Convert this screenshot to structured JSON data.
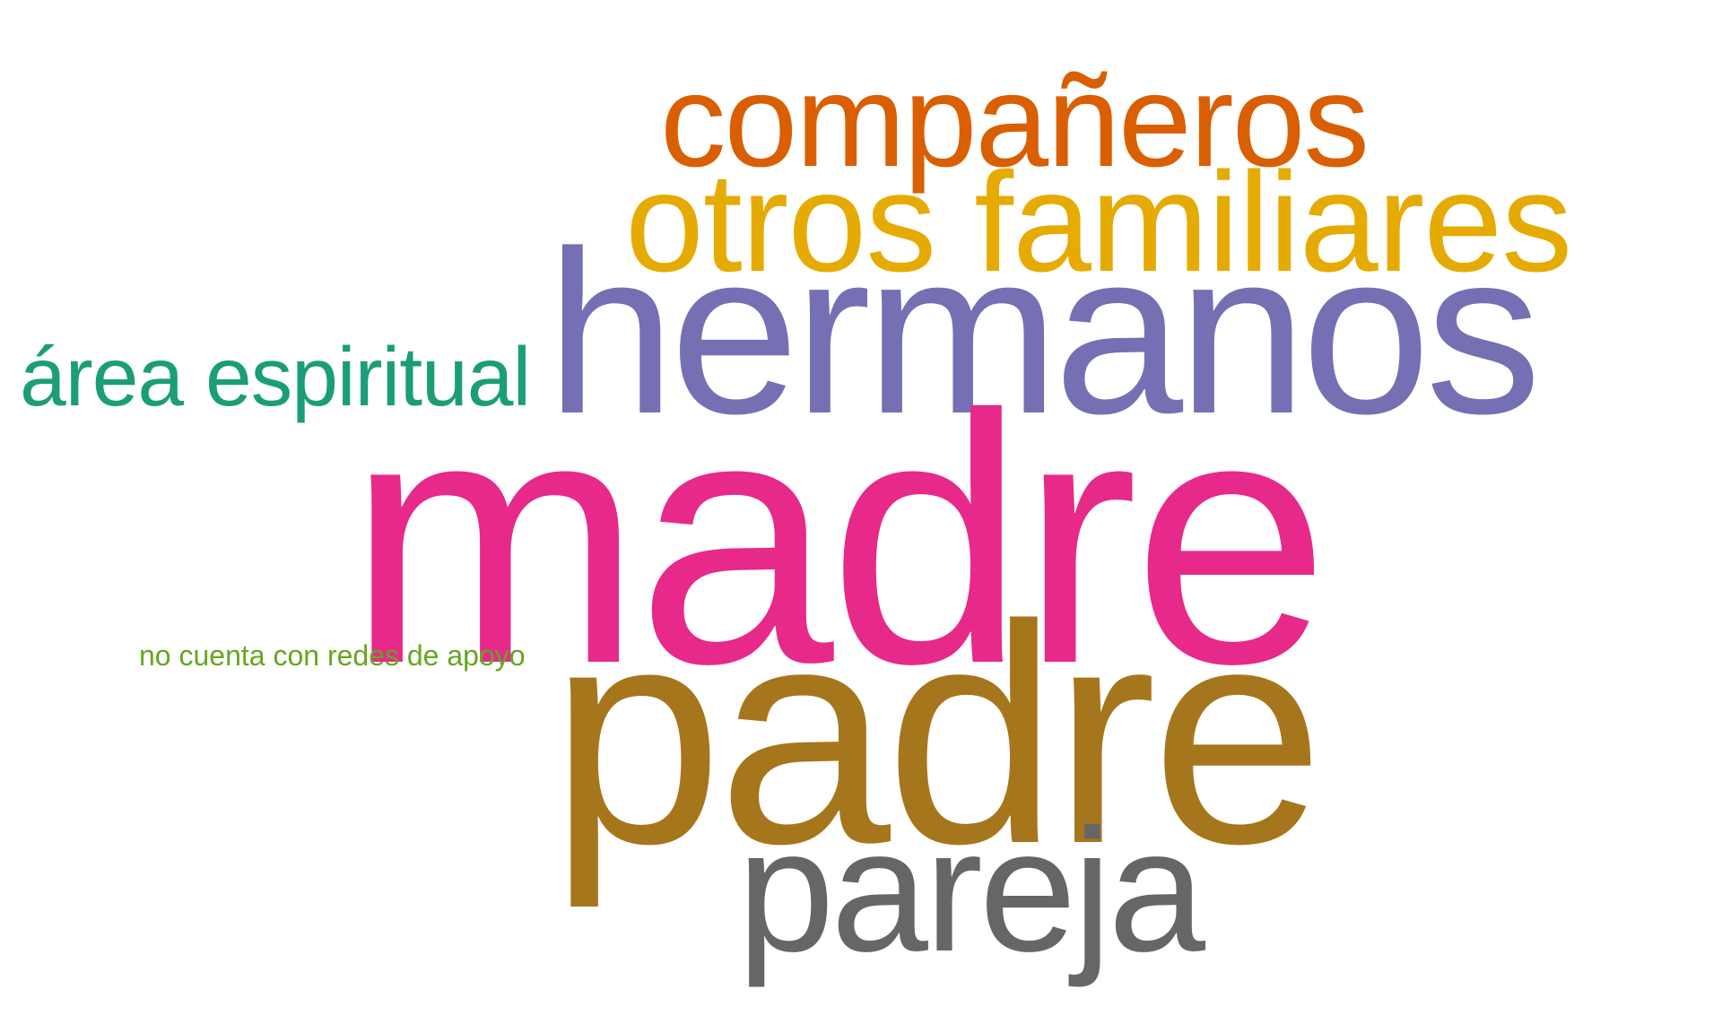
{
  "words": [
    {
      "text": "madre",
      "color": "#E7298A",
      "rank": 1
    },
    {
      "text": "padre",
      "color": "#A6761D",
      "rank": 2
    },
    {
      "text": "hermanos",
      "color": "#7570B3",
      "rank": 3
    },
    {
      "text": "pareja",
      "color": "#666666",
      "rank": 4
    },
    {
      "text": "otros familiares",
      "color": "#E6AB02",
      "rank": 5
    },
    {
      "text": "compañeros",
      "color": "#D95F02",
      "rank": 6
    },
    {
      "text": "área espiritual",
      "color": "#1B9E77",
      "rank": 7
    },
    {
      "text": "no cuenta con redes de apoyo",
      "color": "#66A61E",
      "rank": 8
    }
  ]
}
